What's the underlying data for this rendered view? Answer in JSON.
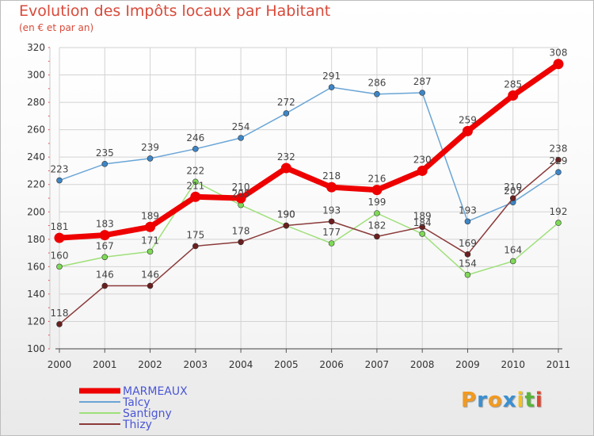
{
  "header": {
    "title": "Evolution des Impôts locaux par Habitant",
    "subtitle": "(en € et par an)"
  },
  "logo": {
    "letters": [
      "P",
      "r",
      "o",
      "x",
      "i",
      "t",
      "i"
    ],
    "colors": [
      "#f29a1f",
      "#3a8fd0",
      "#f29a1f",
      "#3a8fd0",
      "#f2c21f",
      "#59b53a",
      "#e0482f"
    ]
  },
  "chart_data": {
    "type": "line",
    "title": "Evolution des Impôts locaux par Habitant",
    "subtitle": "(en € et par an)",
    "xlabel": "",
    "ylabel": "",
    "x": [
      "2000",
      "2001",
      "2002",
      "2003",
      "2004",
      "2005",
      "2006",
      "2007",
      "2008",
      "2009",
      "2010",
      "2011"
    ],
    "ylim": [
      100,
      320
    ],
    "yticks": [
      100,
      120,
      140,
      160,
      180,
      200,
      220,
      240,
      260,
      280,
      300,
      320
    ],
    "grid": true,
    "legend_position": "bottom-left",
    "series": [
      {
        "name": "MARMEAUX",
        "color": "#ee0000",
        "marker_color": "#ee0000",
        "values": [
          181,
          183,
          189,
          211,
          210,
          232,
          218,
          216,
          230,
          259,
          285,
          308
        ],
        "labels": [
          "181",
          "183",
          "189",
          "211",
          "210",
          "232",
          "218",
          "216",
          "230",
          "259",
          "285",
          "308"
        ]
      },
      {
        "name": "Talcy",
        "color": "#6aa5d6",
        "marker_color": "#3d86c6",
        "values": [
          223,
          235,
          239,
          246,
          254,
          272,
          291,
          286,
          287,
          193,
          207,
          229
        ],
        "labels": [
          "223",
          "235",
          "239",
          "246",
          "254",
          "272",
          "291",
          "286",
          "287",
          "193",
          "207",
          "229"
        ]
      },
      {
        "name": "Santigny",
        "color": "#9fe07a",
        "marker_color": "#7ed957",
        "values": [
          160,
          167,
          171,
          222,
          205,
          190,
          177,
          199,
          184,
          154,
          164,
          192
        ],
        "labels": [
          "160",
          "167",
          "171",
          "222",
          "205",
          "190",
          "177",
          "199",
          "184",
          "154",
          "164",
          "192"
        ]
      },
      {
        "name": "Thizy",
        "color": "#8b3a3a",
        "marker_color": "#6b1f1f",
        "values": [
          118,
          146,
          146,
          175,
          178,
          190,
          193,
          182,
          189,
          169,
          210,
          238
        ],
        "labels": [
          "118",
          "146",
          "146",
          "175",
          "178",
          "190",
          "193",
          "182",
          "189",
          "169",
          "210",
          "238"
        ]
      }
    ]
  }
}
